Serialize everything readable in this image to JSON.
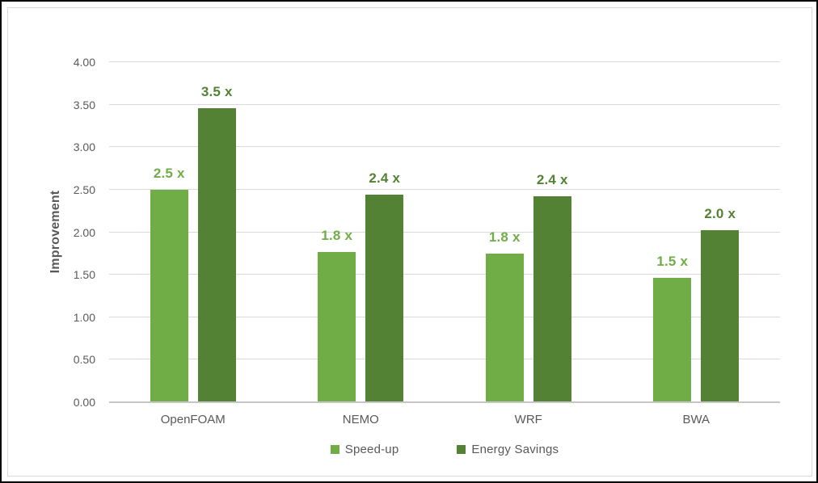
{
  "chart_data": {
    "type": "bar",
    "title": "",
    "xlabel": "",
    "ylabel": "Improvement",
    "categories": [
      "OpenFOAM",
      "NEMO",
      "WRF",
      "BWA"
    ],
    "series": [
      {
        "name": "Speed-up",
        "color": "#70AD47",
        "values": [
          2.5,
          1.77,
          1.75,
          1.46
        ],
        "labels": [
          "2.5 x",
          "1.8 x",
          "1.8 x",
          "1.5 x"
        ]
      },
      {
        "name": "Energy Savings",
        "color": "#548235",
        "values": [
          3.46,
          2.44,
          2.42,
          2.02
        ],
        "labels": [
          "3.5 x",
          "2.4 x",
          "2.4 x",
          "2.0 x"
        ]
      }
    ],
    "ylim": [
      0,
      4
    ],
    "ytick_step": 0.5,
    "ytick_labels": [
      "0.00",
      "0.50",
      "1.00",
      "1.50",
      "2.00",
      "2.50",
      "3.00",
      "3.50",
      "4.00"
    ],
    "grid": true,
    "legend_position": "bottom"
  },
  "colors": {
    "axis_text": "#595959",
    "gridline": "#D9D9D9",
    "axis_line": "#C6C6C6",
    "chart_border": "#D9D9D9",
    "outer_border": "#000000",
    "background": "#FFFFFF"
  }
}
